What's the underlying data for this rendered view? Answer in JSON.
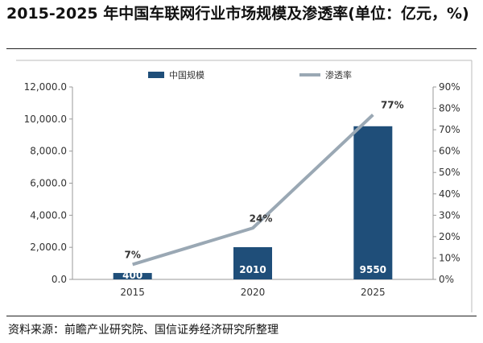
{
  "title": "2015-2025 年中国车联网行业市场规模及渗透率(单位：亿元，%)",
  "source": "资料来源：前瞻产业研究院、国信证券经济研究所整理",
  "colors": {
    "bar": "#1f4e79",
    "line": "#9aa8b4",
    "axis": "#999999",
    "text": "#333333"
  },
  "chart_data": {
    "type": "bar",
    "categories": [
      "2015",
      "2020",
      "2025"
    ],
    "series": [
      {
        "name": "中国规模",
        "type": "bar",
        "axis": "left",
        "values": [
          400,
          2010,
          9550
        ],
        "data_labels": [
          "400",
          "2010",
          "9550"
        ]
      },
      {
        "name": "渗透率",
        "type": "line",
        "axis": "right",
        "values": [
          7,
          24,
          77
        ],
        "data_labels": [
          "7%",
          "24%",
          "77%"
        ]
      }
    ],
    "y_left": {
      "lim": [
        0,
        12000
      ],
      "ticks": [
        "0.0",
        "2,000.0",
        "4,000.0",
        "6,000.0",
        "8,000.0",
        "10,000.0",
        "12,000.0"
      ]
    },
    "y_right": {
      "lim": [
        0,
        90
      ],
      "ticks": [
        "0%",
        "10%",
        "20%",
        "30%",
        "40%",
        "50%",
        "60%",
        "70%",
        "80%",
        "90%"
      ]
    },
    "grid": false,
    "legend_position": "top"
  }
}
